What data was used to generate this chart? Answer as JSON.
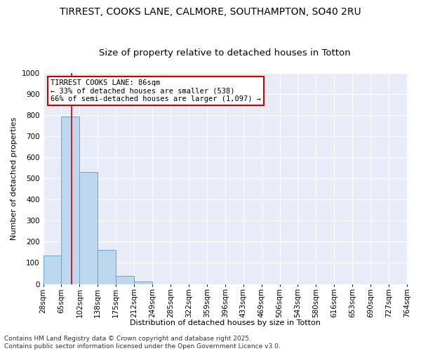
{
  "title_line1": "TIRREST, COOKS LANE, CALMORE, SOUTHAMPTON, SO40 2RU",
  "title_line2": "Size of property relative to detached houses in Totton",
  "xlabel": "Distribution of detached houses by size in Totton",
  "ylabel": "Number of detached properties",
  "bar_values": [
    135,
    795,
    530,
    160,
    37,
    12,
    0,
    0,
    0,
    0,
    0,
    0,
    0,
    0,
    0,
    0,
    0,
    0,
    0,
    0
  ],
  "bar_labels": [
    "28sqm",
    "65sqm",
    "102sqm",
    "138sqm",
    "175sqm",
    "212sqm",
    "249sqm",
    "285sqm",
    "322sqm",
    "359sqm",
    "396sqm",
    "433sqm",
    "469sqm",
    "506sqm",
    "543sqm",
    "580sqm",
    "616sqm",
    "653sqm",
    "690sqm",
    "727sqm",
    "764sqm"
  ],
  "bar_color": "#BDD7EE",
  "bar_edge_color": "#5B9BD5",
  "vline_color": "#CC0000",
  "vline_position": 1.0,
  "annotation_text": "TIRREST COOKS LANE: 86sqm\n← 33% of detached houses are smaller (538)\n66% of semi-detached houses are larger (1,097) →",
  "annotation_box_color": "#CC0000",
  "ylim": [
    0,
    1000
  ],
  "yticks": [
    0,
    100,
    200,
    300,
    400,
    500,
    600,
    700,
    800,
    900,
    1000
  ],
  "footer_text": "Contains HM Land Registry data © Crown copyright and database right 2025.\nContains public sector information licensed under the Open Government Licence v3.0.",
  "background_color": "#E8ECF8",
  "grid_color": "#FFFFFF",
  "title_fontsize": 10,
  "subtitle_fontsize": 9.5,
  "axis_label_fontsize": 8,
  "tick_fontsize": 7.5,
  "annotation_fontsize": 7.5,
  "footer_fontsize": 6.5
}
